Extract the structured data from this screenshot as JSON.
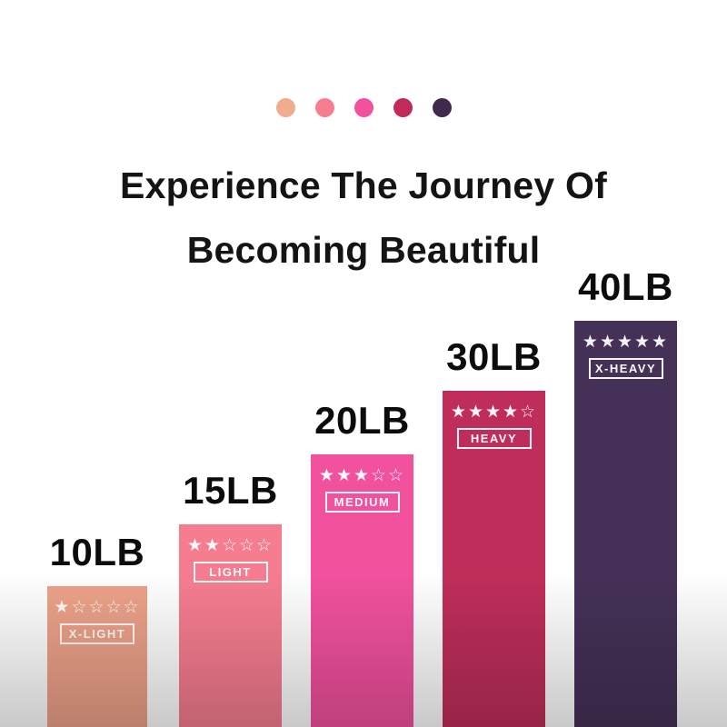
{
  "page": {
    "background": "#ffffff",
    "bottom_fade_color": "#c7c7c7"
  },
  "palette": {
    "dots": [
      {
        "name": "x-light-dot",
        "color": "#f0ad8d"
      },
      {
        "name": "light-dot",
        "color": "#f77e91"
      },
      {
        "name": "medium-dot",
        "color": "#f2519e"
      },
      {
        "name": "heavy-dot",
        "color": "#c22a5b"
      },
      {
        "name": "x-heavy-dot",
        "color": "#3f2a4d"
      }
    ]
  },
  "title": {
    "line1": "Experience The Journey Of",
    "line2": "Becoming Beautiful"
  },
  "bars": [
    {
      "weight": "10LB",
      "tier": "X-LIGHT",
      "stars": "★☆☆☆☆",
      "rating": 1,
      "color": "#eda289"
    },
    {
      "weight": "15LB",
      "tier": "LIGHT",
      "stars": "★★☆☆☆",
      "rating": 2,
      "color": "#f67d90"
    },
    {
      "weight": "20LB",
      "tier": "MEDIUM",
      "stars": "★★★☆☆",
      "rating": 3,
      "color": "#f2519e"
    },
    {
      "weight": "30LB",
      "tier": "HEAVY",
      "stars": "★★★★☆",
      "rating": 4,
      "color": "#bf2e5a"
    },
    {
      "weight": "40LB",
      "tier": "X-HEAVY",
      "stars": "★★★★★",
      "rating": 5,
      "color": "#453157"
    }
  ],
  "chart_data": {
    "type": "bar",
    "title": "Experience The Journey Of Becoming Beautiful",
    "categories": [
      "10LB",
      "15LB",
      "20LB",
      "30LB",
      "40LB"
    ],
    "values": [
      10,
      15,
      20,
      30,
      40
    ],
    "unit": "LB",
    "bar_labels": [
      "X-LIGHT",
      "LIGHT",
      "MEDIUM",
      "HEAVY",
      "X-HEAVY"
    ],
    "star_ratings": [
      1,
      2,
      3,
      4,
      5
    ],
    "star_max": 5,
    "bar_colors": [
      "#eda289",
      "#f67d90",
      "#f2519e",
      "#bf2e5a",
      "#453157"
    ],
    "xlabel": "",
    "ylabel": "",
    "grid": false,
    "legend_position": "none",
    "axes_visible": false,
    "orientation": "vertical",
    "annotation": "bars increase stepwise left to right; labels above bars; star rating and tier badge inside each bar"
  }
}
